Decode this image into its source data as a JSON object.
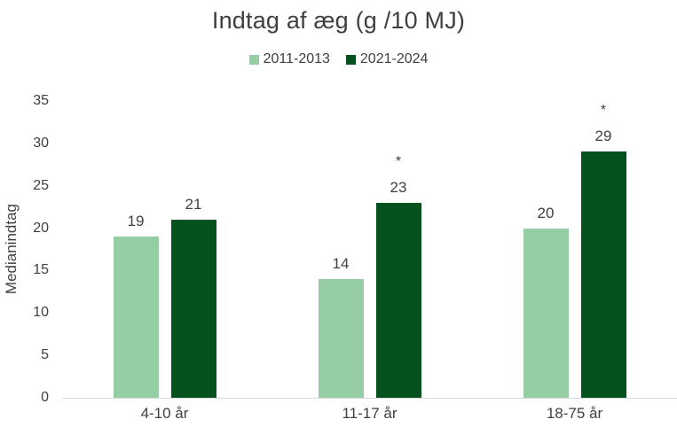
{
  "page": {
    "background": "#ffffff",
    "text_color": "#404040",
    "title_color": "#3f3f3f",
    "axis_line_color": "#d9d9d9"
  },
  "chart_data": {
    "type": "bar",
    "title": "Indtag af æg (g /10 MJ)",
    "categories": [
      "4-10 år",
      "11-17 år",
      "18-75 år"
    ],
    "series": [
      {
        "name": "2011-2013",
        "color": "#95cda4",
        "values": [
          19,
          14,
          20
        ],
        "stars": [
          false,
          false,
          false
        ]
      },
      {
        "name": "2021-2024",
        "color": "#05521e",
        "values": [
          21,
          23,
          29
        ],
        "stars": [
          false,
          true,
          true
        ]
      }
    ],
    "value_labels_shown": true,
    "significance_marker": "*",
    "xlabel": "",
    "ylabel": "Medianindtag",
    "ylim": [
      0,
      35
    ],
    "ytick_step": 5,
    "yticks": [
      0,
      5,
      10,
      15,
      20,
      25,
      30,
      35
    ],
    "legend_position": "top",
    "grid": false
  }
}
